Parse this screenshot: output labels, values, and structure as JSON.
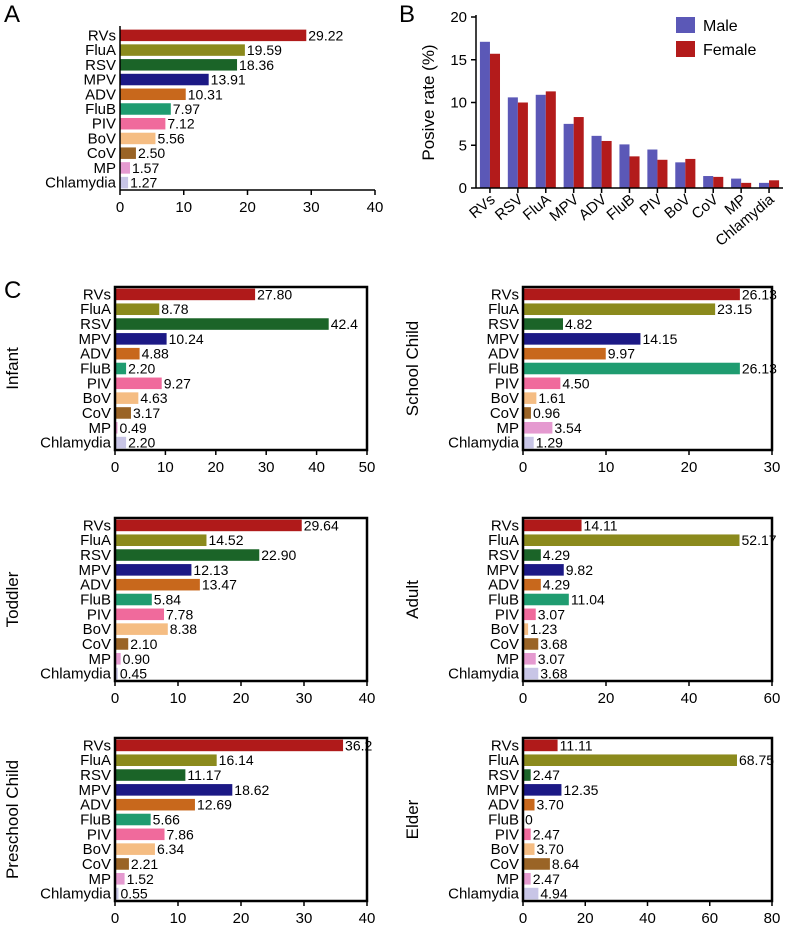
{
  "figure": {
    "panel_letters": {
      "A": "A",
      "B": "B",
      "C": "C"
    }
  },
  "colors": {
    "RVs": "#b01a1a",
    "FluA": "#8b8a1d",
    "RSV": "#1b6428",
    "MPV": "#1c1985",
    "ADV": "#c8681c",
    "FluB": "#1f9c70",
    "PIV": "#f06a9c",
    "BoV": "#f5bd83",
    "CoV": "#9a6426",
    "MP": "#e59ad0",
    "Chlamydia": "#c8c5e6",
    "male": "#5b58b7",
    "female": "#b31b1b"
  },
  "chart_data": [
    {
      "id": "A",
      "type": "bar",
      "orientation": "horizontal",
      "title": "",
      "xlabel": "",
      "ylabel": "",
      "categories": [
        "RVs",
        "FluA",
        "RSV",
        "MPV",
        "ADV",
        "FluB",
        "PIV",
        "BoV",
        "CoV",
        "MP",
        "Chlamydia"
      ],
      "values": [
        29.22,
        19.59,
        18.36,
        13.91,
        10.31,
        7.97,
        7.12,
        5.56,
        2.5,
        1.57,
        1.27
      ],
      "value_labels": [
        "29.22",
        "19.59",
        "18.36",
        "13.91",
        "10.31",
        "7.97",
        "7.12",
        "5.56",
        "2.50",
        "1.57",
        "1.27"
      ],
      "xlim": [
        0,
        40
      ],
      "ticks": [
        0,
        10,
        20,
        30,
        40
      ],
      "tick_labels": [
        "0",
        "10",
        "20",
        "30",
        "40"
      ]
    },
    {
      "id": "B",
      "type": "bar",
      "orientation": "vertical",
      "title": "",
      "xlabel": "",
      "ylabel": "Posive rate (%)",
      "categories": [
        "RVs",
        "RSV",
        "FluA",
        "MPV",
        "ADV",
        "FluB",
        "PIV",
        "BoV",
        "CoV",
        "MP",
        "Chlamydia"
      ],
      "series": [
        {
          "name": "Male",
          "values": [
            17.1,
            10.6,
            10.9,
            7.5,
            6.1,
            5.1,
            4.5,
            3.0,
            1.4,
            1.1,
            0.6
          ]
        },
        {
          "name": "Female",
          "values": [
            15.7,
            10.0,
            11.3,
            8.3,
            5.5,
            3.7,
            3.3,
            3.4,
            1.3,
            0.6,
            0.9
          ]
        }
      ],
      "ylim": [
        0,
        20
      ],
      "ticks": [
        0,
        5,
        10,
        15,
        20
      ],
      "tick_labels": [
        "0",
        "5",
        "10",
        "15",
        "20"
      ],
      "legend": "top-right"
    },
    {
      "id": "C-infant",
      "type": "bar",
      "orientation": "horizontal",
      "title": "Infant",
      "categories": [
        "RVs",
        "FluA",
        "RSV",
        "MPV",
        "ADV",
        "FluB",
        "PIV",
        "BoV",
        "CoV",
        "MP",
        "Chlamydia"
      ],
      "values": [
        27.8,
        8.78,
        42.4,
        10.24,
        4.88,
        2.2,
        9.27,
        4.63,
        3.17,
        0.49,
        2.2
      ],
      "value_labels": [
        "27.80",
        "8.78",
        "42.4",
        "10.24",
        "4.88",
        "2.20",
        "9.27",
        "4.63",
        "3.17",
        "0.49",
        "2.20"
      ],
      "xlim": [
        0,
        50
      ],
      "ticks": [
        0,
        10,
        20,
        30,
        40,
        50
      ],
      "tick_labels": [
        "0",
        "10",
        "20",
        "30",
        "40",
        "50"
      ]
    },
    {
      "id": "C-school",
      "type": "bar",
      "orientation": "horizontal",
      "title": "School Child",
      "categories": [
        "RVs",
        "FluA",
        "RSV",
        "MPV",
        "ADV",
        "FluB",
        "PIV",
        "BoV",
        "CoV",
        "MP",
        "Chlamydia"
      ],
      "values": [
        26.13,
        23.15,
        4.82,
        14.15,
        9.97,
        26.13,
        4.5,
        1.61,
        0.96,
        3.54,
        1.29
      ],
      "value_labels": [
        "26.13",
        "23.15",
        "4.82",
        "14.15",
        "9.97",
        "26.13",
        "4.50",
        "1.61",
        "0.96",
        "3.54",
        "1.29"
      ],
      "xlim": [
        0,
        30
      ],
      "ticks": [
        0,
        10,
        20,
        30
      ],
      "tick_labels": [
        "0",
        "10",
        "20",
        "30"
      ]
    },
    {
      "id": "C-toddler",
      "type": "bar",
      "orientation": "horizontal",
      "title": "Toddler",
      "categories": [
        "RVs",
        "FluA",
        "RSV",
        "MPV",
        "ADV",
        "FluB",
        "PIV",
        "BoV",
        "CoV",
        "MP",
        "Chlamydia"
      ],
      "values": [
        29.64,
        14.52,
        22.9,
        12.13,
        13.47,
        5.84,
        7.78,
        8.38,
        2.1,
        0.9,
        0.45
      ],
      "value_labels": [
        "29.64",
        "14.52",
        "22.90",
        "12.13",
        "13.47",
        "5.84",
        "7.78",
        "8.38",
        "2.10",
        "0.90",
        "0.45"
      ],
      "xlim": [
        0,
        40
      ],
      "ticks": [
        0,
        10,
        20,
        30,
        40
      ],
      "tick_labels": [
        "0",
        "10",
        "20",
        "30",
        "40"
      ]
    },
    {
      "id": "C-adult",
      "type": "bar",
      "orientation": "horizontal",
      "title": "Adult",
      "categories": [
        "RVs",
        "FluA",
        "RSV",
        "MPV",
        "ADV",
        "FluB",
        "PIV",
        "BoV",
        "CoV",
        "MP",
        "Chlamydia"
      ],
      "values": [
        14.11,
        52.17,
        4.29,
        9.82,
        4.29,
        11.04,
        3.07,
        1.23,
        3.68,
        3.07,
        3.68
      ],
      "value_labels": [
        "14.11",
        "52.17",
        "4.29",
        "9.82",
        "4.29",
        "11.04",
        "3.07",
        "1.23",
        "3.68",
        "3.07",
        "3.68"
      ],
      "xlim": [
        0,
        60
      ],
      "ticks": [
        0,
        20,
        40,
        60
      ],
      "tick_labels": [
        "0",
        "20",
        "40",
        "60"
      ]
    },
    {
      "id": "C-preschool",
      "type": "bar",
      "orientation": "horizontal",
      "title": "Preschool Child",
      "categories": [
        "RVs",
        "FluA",
        "RSV",
        "MPV",
        "ADV",
        "FluB",
        "PIV",
        "BoV",
        "CoV",
        "MP",
        "Chlamydia"
      ],
      "values": [
        36.2,
        16.14,
        11.17,
        18.62,
        12.69,
        5.66,
        7.86,
        6.34,
        2.21,
        1.52,
        0.55
      ],
      "value_labels": [
        "36.2",
        "16.14",
        "11.17",
        "18.62",
        "12.69",
        "5.66",
        "7.86",
        "6.34",
        "2.21",
        "1.52",
        "0.55"
      ],
      "xlim": [
        0,
        40
      ],
      "ticks": [
        0,
        10,
        20,
        30,
        40
      ],
      "tick_labels": [
        "0",
        "10",
        "20",
        "30",
        "40"
      ]
    },
    {
      "id": "C-elder",
      "type": "bar",
      "orientation": "horizontal",
      "title": "Elder",
      "categories": [
        "RVs",
        "FluA",
        "RSV",
        "MPV",
        "ADV",
        "FluB",
        "PIV",
        "BoV",
        "CoV",
        "MP",
        "Chlamydia"
      ],
      "values": [
        11.11,
        68.75,
        2.47,
        12.35,
        3.7,
        0,
        2.47,
        3.7,
        8.64,
        2.47,
        4.94
      ],
      "value_labels": [
        "11.11",
        "68.75",
        "2.47",
        "12.35",
        "3.70",
        "0",
        "2.47",
        "3.70",
        "8.64",
        "2.47",
        "4.94"
      ],
      "xlim": [
        0,
        80
      ],
      "ticks": [
        0,
        20,
        40,
        60,
        80
      ],
      "tick_labels": [
        "0",
        "20",
        "40",
        "60",
        "80"
      ]
    }
  ]
}
